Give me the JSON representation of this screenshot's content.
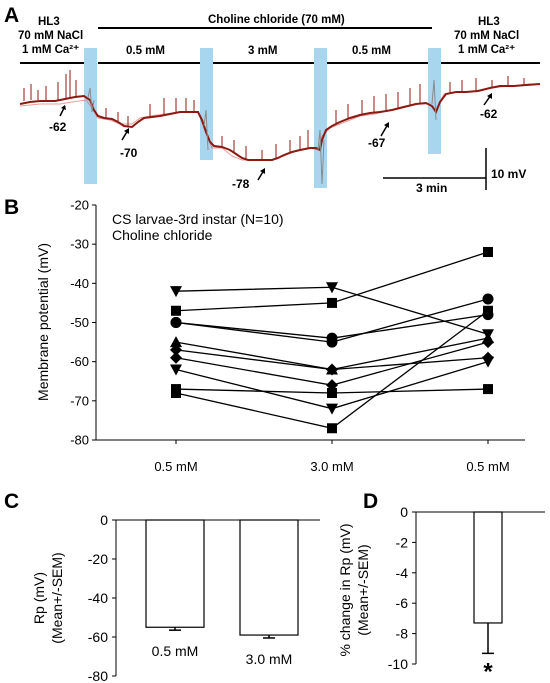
{
  "panels": {
    "A": "A",
    "B": "B",
    "C": "C",
    "D": "D"
  },
  "trace": {
    "top_label": "Choline chloride (70 mM)",
    "left_solution": [
      "HL3",
      "70 mM NaCl",
      "1 mM Ca²⁺"
    ],
    "right_solution": [
      "HL3",
      "70 mM NaCl",
      "1 mM Ca²⁺"
    ],
    "segment_labels": [
      "0.5 mM",
      "3 mM",
      "0.5 mM"
    ],
    "resting_annotations": [
      "-62",
      "-70",
      "-78",
      "-67",
      "-62"
    ],
    "scale_time": "3 min",
    "scale_voltage": "10 mV",
    "colors": {
      "trace": "#8b1a12",
      "highlight": "#a9d6ef",
      "noise": "#e8473f"
    }
  },
  "chart_data": [
    {
      "type": "line",
      "panel": "B",
      "legend": [
        "CS larvae-3rd instar (N=10)",
        "Choline chloride"
      ],
      "ylabel": "Membrane potential (mV)",
      "categories": [
        "0.5 mM",
        "3.0 mM",
        "0.5 mM"
      ],
      "ylim": [
        -80,
        -20
      ],
      "yticks": [
        -20,
        -30,
        -40,
        -50,
        -60,
        -70,
        -80
      ],
      "series": [
        {
          "marker": "square",
          "values": [
            -47,
            -45,
            -32
          ]
        },
        {
          "marker": "triangle-down",
          "values": [
            -42,
            -41,
            -53
          ]
        },
        {
          "marker": "circle",
          "values": [
            -50,
            -55,
            -44
          ]
        },
        {
          "marker": "circle",
          "values": [
            -50,
            -54,
            -48
          ]
        },
        {
          "marker": "triangle-up",
          "values": [
            -55,
            -62,
            -54
          ]
        },
        {
          "marker": "diamond",
          "values": [
            -57,
            -62,
            -59
          ]
        },
        {
          "marker": "diamond",
          "values": [
            -59,
            -66,
            -55
          ]
        },
        {
          "marker": "square",
          "values": [
            -67,
            -68,
            -67
          ]
        },
        {
          "marker": "triangle-down",
          "values": [
            -62,
            -72,
            -60
          ]
        },
        {
          "marker": "square",
          "values": [
            -68,
            -77,
            -47
          ]
        }
      ]
    },
    {
      "type": "bar",
      "panel": "C",
      "ylabel": "Rp (mV)",
      "ylabel2": "(Mean+/-SEM)",
      "categories": [
        "0.5 mM",
        "3.0 mM"
      ],
      "values": [
        -55,
        -59
      ],
      "errors": [
        1.5,
        1.5
      ],
      "ylim": [
        -80,
        0
      ],
      "yticks": [
        0,
        -20,
        -40,
        -60,
        -80
      ]
    },
    {
      "type": "bar",
      "panel": "D",
      "ylabel": "% change in Rp (mV)",
      "ylabel2": "(Mean+/-SEM)",
      "values": [
        -7.3
      ],
      "errors": [
        2.0
      ],
      "significance": "*",
      "ylim": [
        -10,
        0
      ],
      "yticks": [
        0,
        -2,
        -4,
        -6,
        -8,
        -10
      ]
    }
  ]
}
